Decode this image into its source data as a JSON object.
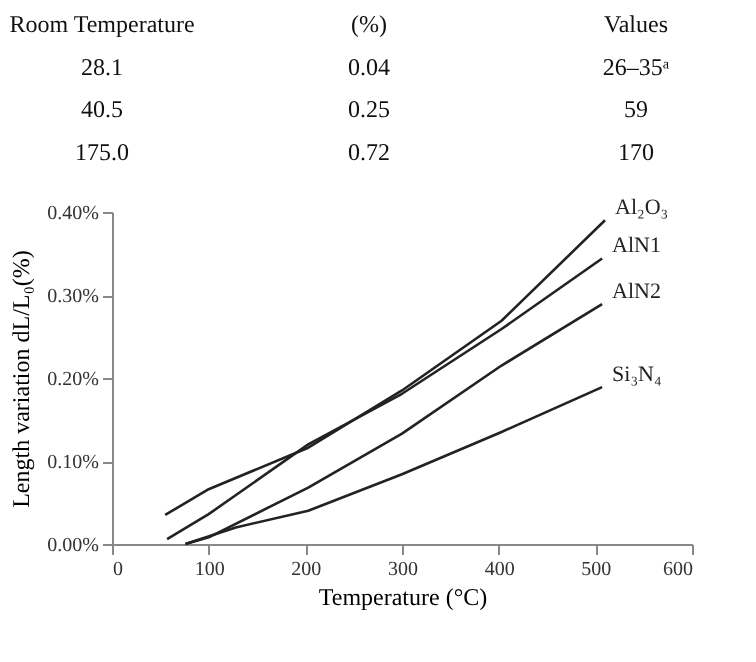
{
  "chart_data": {
    "type": "line",
    "xlabel": "Temperature (°C)",
    "ylabel": "Length variation dL/L₀(%)",
    "annotations": [
      "Room Temperature",
      "(%)",
      "Values",
      "28.1",
      "0.04",
      "26–35ᵃ",
      "40.5",
      "0.25",
      "59",
      "175.0",
      "0.72",
      "170"
    ],
    "series": [
      {
        "name": "Al₂O₃",
        "color": "#222222",
        "x": [
          55,
          100,
          203,
          300,
          403,
          510
        ],
        "values": [
          0.035,
          0.066,
          0.116,
          0.185,
          0.269,
          0.39
        ]
      },
      {
        "name": "AlN1",
        "color": "#222222",
        "x": [
          57,
          100,
          203,
          300,
          403,
          507
        ],
        "values": [
          0.006,
          0.036,
          0.12,
          0.181,
          0.259,
          0.344
        ]
      },
      {
        "name": "AlN2",
        "color": "#222222",
        "x": [
          76,
          100,
          203,
          300,
          403,
          507
        ],
        "values": [
          0,
          0.008,
          0.068,
          0.133,
          0.215,
          0.289
        ]
      },
      {
        "name": "Si₃N₄",
        "color": "#222222",
        "x": [
          76,
          128,
          203,
          300,
          403,
          507
        ],
        "values": [
          0,
          0.02,
          0.04,
          0.084,
          0.135,
          0.189
        ]
      }
    ],
    "xlim": [
      0,
      600
    ],
    "xticks": [
      0,
      100,
      200,
      300,
      400,
      500,
      600
    ],
    "ylim": [
      0,
      0.4
    ],
    "yticks": [
      {
        "value": 0,
        "label": "0.00%"
      },
      {
        "value": 0.1,
        "label": "0.10%"
      },
      {
        "value": 0.2,
        "label": "0.20%"
      },
      {
        "value": 0.3,
        "label": "0.30%"
      },
      {
        "value": 0.4,
        "label": "0.40%"
      }
    ],
    "grid": false,
    "legend": false,
    "marker": "none",
    "line_style": "solid"
  }
}
